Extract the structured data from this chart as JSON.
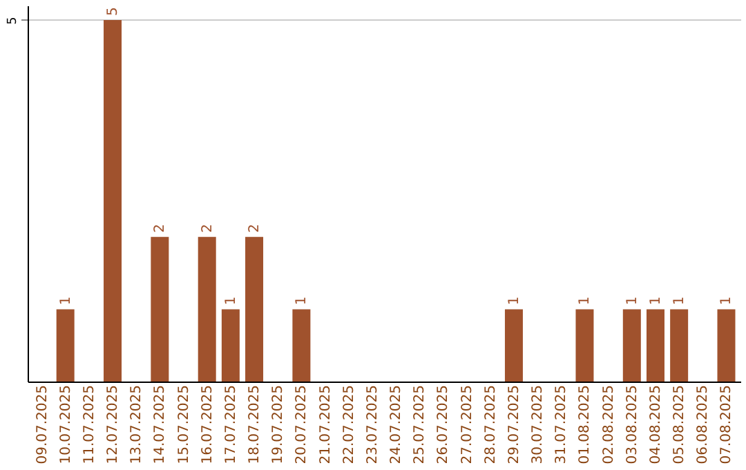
{
  "chart_data": {
    "type": "bar",
    "categories": [
      "09.07.2025",
      "10.07.2025",
      "11.07.2025",
      "12.07.2025",
      "13.07.2025",
      "14.07.2025",
      "15.07.2025",
      "16.07.2025",
      "17.07.2025",
      "18.07.2025",
      "19.07.2025",
      "20.07.2025",
      "21.07.2025",
      "22.07.2025",
      "23.07.2025",
      "24.07.2025",
      "25.07.2025",
      "26.07.2025",
      "27.07.2025",
      "28.07.2025",
      "29.07.2025",
      "30.07.2025",
      "31.07.2025",
      "01.08.2025",
      "02.08.2025",
      "03.08.2025",
      "04.08.2025",
      "05.08.2025",
      "06.08.2025",
      "07.08.2025"
    ],
    "values": [
      0,
      1,
      0,
      5,
      0,
      2,
      0,
      2,
      1,
      2,
      0,
      1,
      0,
      0,
      0,
      0,
      0,
      0,
      0,
      0,
      1,
      0,
      0,
      1,
      0,
      1,
      1,
      1,
      0,
      1
    ],
    "value_labels": [
      null,
      "1",
      null,
      "5",
      null,
      "2",
      null,
      "2",
      "1",
      "2",
      null,
      "1",
      null,
      null,
      null,
      null,
      null,
      null,
      null,
      null,
      "1",
      null,
      null,
      "1",
      null,
      "1",
      "1",
      "1",
      null,
      "1"
    ],
    "color": "#a0522d",
    "ylim": [
      0,
      5.2
    ],
    "yticks": [
      5
    ],
    "grid": "y"
  }
}
